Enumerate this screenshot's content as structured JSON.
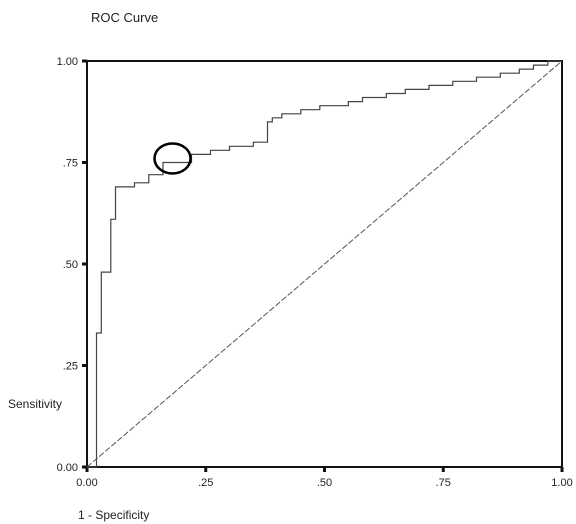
{
  "chart_data": {
    "type": "line",
    "title": "ROC Curve",
    "xlabel": "1 - Specificity",
    "ylabel": "Sensitivity",
    "xlim": [
      0,
      1
    ],
    "ylim": [
      0,
      1
    ],
    "x_ticks": [
      0,
      0.25,
      0.5,
      0.75,
      1.0
    ],
    "x_tick_labels": [
      "0.00",
      ".25",
      ".50",
      ".75",
      "1.00"
    ],
    "y_ticks": [
      0,
      0.25,
      0.5,
      0.75,
      1.0
    ],
    "y_tick_labels": [
      "0.00",
      ".25",
      ".50",
      ".75",
      "1.00"
    ],
    "grid": false,
    "series": [
      {
        "style": "step",
        "x": [
          0.0,
          0.02,
          0.02,
          0.03,
          0.03,
          0.05,
          0.05,
          0.06,
          0.06,
          0.1,
          0.1,
          0.13,
          0.13,
          0.16,
          0.16,
          0.22,
          0.22,
          0.26,
          0.26,
          0.3,
          0.3,
          0.35,
          0.35,
          0.38,
          0.38,
          0.39,
          0.39,
          0.41,
          0.41,
          0.45,
          0.45,
          0.49,
          0.49,
          0.55,
          0.55,
          0.58,
          0.58,
          0.63,
          0.63,
          0.67,
          0.67,
          0.72,
          0.72,
          0.77,
          0.77,
          0.82,
          0.82,
          0.87,
          0.87,
          0.91,
          0.91,
          0.94,
          0.94,
          0.97,
          0.97,
          1.0
        ],
        "y": [
          0.0,
          0.0,
          0.33,
          0.33,
          0.48,
          0.48,
          0.61,
          0.61,
          0.69,
          0.69,
          0.7,
          0.7,
          0.72,
          0.72,
          0.75,
          0.75,
          0.77,
          0.77,
          0.78,
          0.78,
          0.79,
          0.79,
          0.8,
          0.8,
          0.85,
          0.85,
          0.86,
          0.86,
          0.87,
          0.87,
          0.88,
          0.88,
          0.89,
          0.89,
          0.9,
          0.9,
          0.91,
          0.91,
          0.92,
          0.92,
          0.93,
          0.93,
          0.94,
          0.94,
          0.95,
          0.95,
          0.96,
          0.96,
          0.97,
          0.97,
          0.98,
          0.98,
          0.99,
          0.99,
          1.0,
          1.0
        ]
      },
      {
        "style": "reference",
        "x": [
          0,
          1
        ],
        "y": [
          0,
          1
        ]
      }
    ],
    "annotations": [
      {
        "type": "ellipse",
        "x": 0.18,
        "y": 0.76
      }
    ]
  }
}
